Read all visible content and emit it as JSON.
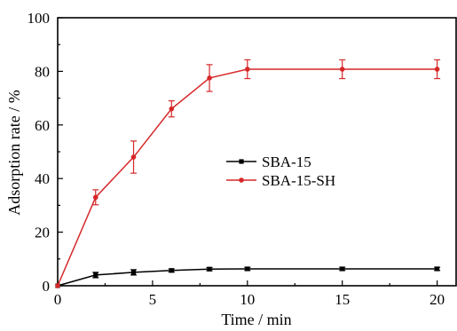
{
  "chart_data": {
    "type": "line",
    "xlabel": "Time / min",
    "ylabel": "Adsorption rate / %",
    "xlim": [
      0,
      21
    ],
    "ylim": [
      0,
      100
    ],
    "xticks": [
      0,
      5,
      10,
      15,
      20
    ],
    "yticks": [
      0,
      20,
      40,
      60,
      80,
      100
    ],
    "legend_position": "center-right",
    "series": [
      {
        "name": "SBA-15",
        "color": "#000000",
        "marker": "square",
        "x": [
          0,
          2,
          4,
          6,
          8,
          10,
          15,
          20
        ],
        "y": [
          0,
          4.0,
          5.0,
          5.7,
          6.2,
          6.3,
          6.3,
          6.3
        ],
        "err": [
          0,
          1.0,
          1.0,
          0.6,
          0.6,
          0.6,
          0.6,
          0.6
        ]
      },
      {
        "name": "SBA-15-SH",
        "color": "#d62728",
        "marker": "circle",
        "x": [
          0,
          2,
          4,
          6,
          8,
          10,
          15,
          20
        ],
        "y": [
          0,
          33.0,
          48.0,
          66.0,
          77.5,
          80.8,
          80.8,
          80.8
        ],
        "err": [
          0,
          2.8,
          6.0,
          3.0,
          5.0,
          3.5,
          3.5,
          3.5
        ]
      }
    ]
  }
}
